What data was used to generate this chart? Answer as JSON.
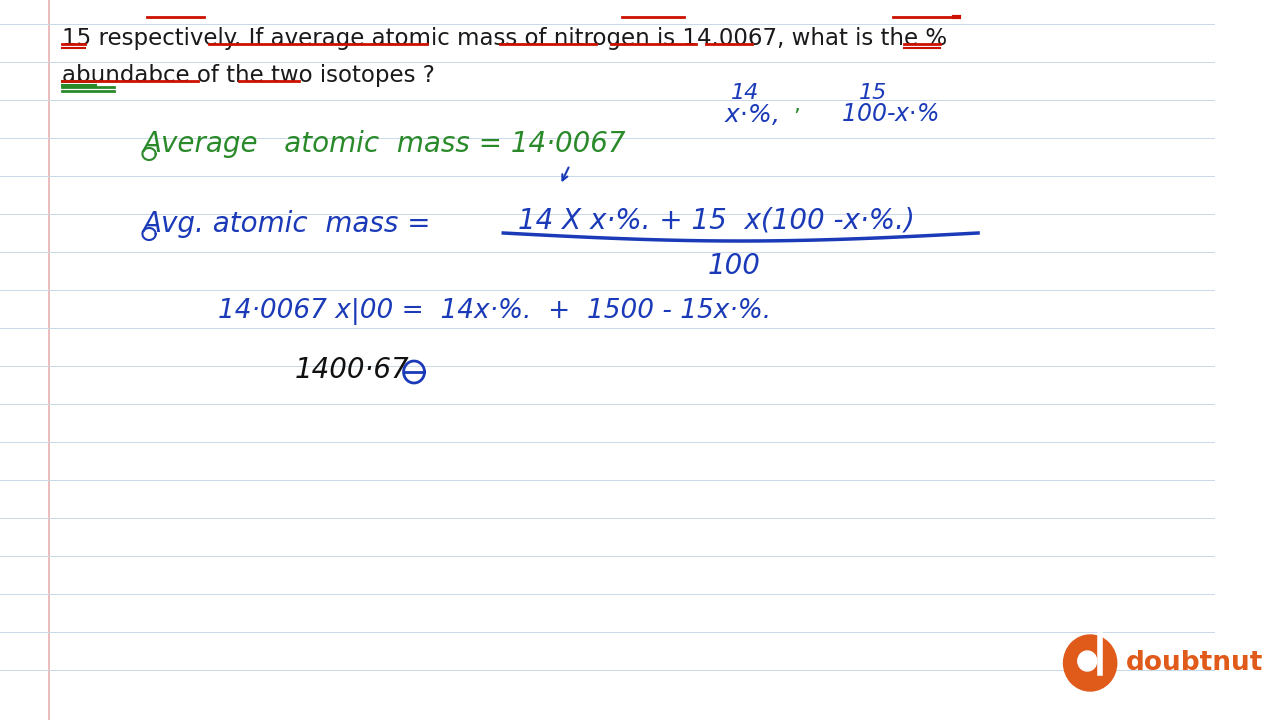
{
  "bg_color": "#ffffff",
  "ruled_line_color": "#c8d8e8",
  "red_line_color": "#e8c8c0",
  "title_text_color": "#1a1a1a",
  "green_color": "#2a8a2a",
  "blue_color": "#1a3ab8",
  "red_color": "#cc1100",
  "dark_color": "#111111",
  "doubtnut_orange": "#e05a1a",
  "doubtnut_red": "#cc3311",
  "question_line1": "15 respectively. If average atomic mass of nitrogen is 14.0067, what is the %",
  "question_line2": "abundabce of the two isotopes ?",
  "avg_mass_text": "Average   atomic  mass = 14·0067",
  "fraction_lhs": "Avg. atomic  mass =",
  "numerator_text": "14 X x·%. + 15  x(100 -x·%.)",
  "denominator_text": "100",
  "step3_text": "14·0067 x|00 =  14x·%.  +  1500 - 15x·%.",
  "step4_text": "1400·67"
}
